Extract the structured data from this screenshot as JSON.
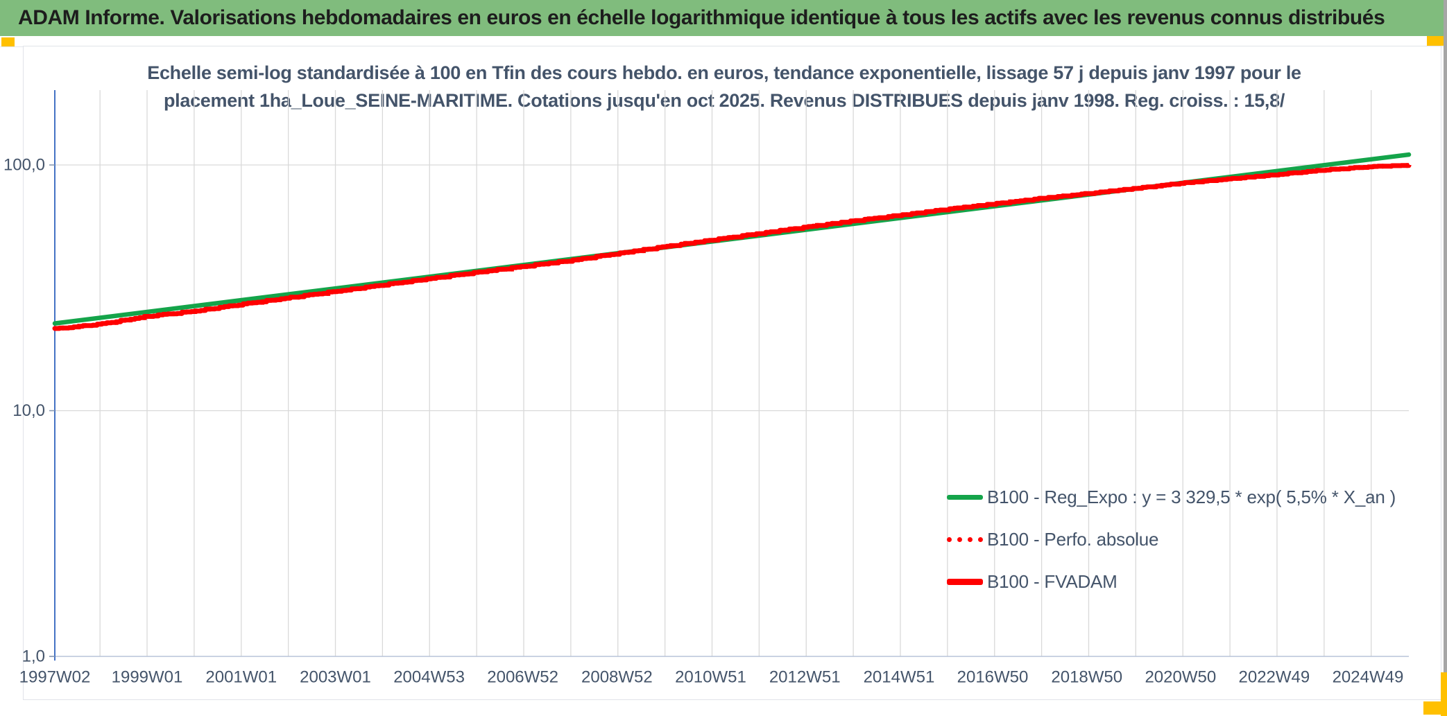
{
  "header": {
    "title": "ADAM Informe. Valorisations hebdomadaires en euros en échelle logarithmique identique à tous les actifs avec les revenus connus distribués",
    "bar_color": "#80bc7d",
    "accent_color": "#ffc000"
  },
  "chart": {
    "title_line1": "Echelle semi-log standardisée à 100 en Tfin des cours hebdo. en euros, tendance exponentielle, lissage 57 j depuis janv 1997 pour le",
    "title_line2": "placement 1ha_Loue_SEINE-MARITIME. Cotations jusqu'en oct 2025. Revenus DISTRIBUES depuis janv 1998. Reg. croiss. : 15,8/",
    "legend": [
      {
        "label": "B100 - Reg_Expo : y = 3 329,5 * exp( 5,5% *  X_an )",
        "color": "#14a44a",
        "style": "solid",
        "weight": 7
      },
      {
        "label": "B100 - Perfo. absolue",
        "color": "#ff0000",
        "style": "dotted",
        "weight": 7
      },
      {
        "label": "B100 - FVADAM",
        "color": "#ff0000",
        "style": "solid",
        "weight": 9
      }
    ]
  },
  "chart_data": {
    "type": "line",
    "title": "Echelle semi-log standardisée à 100 en Tfin des cours hebdo. en euros, tendance exponentielle, lissage 57 j depuis janv 1997 pour le placement 1ha_Loue_SEINE-MARITIME. Cotations jusqu'en oct 2025. Revenus DISTRIBUES depuis janv 1998. Reg. croiss. : 15,8/",
    "x_axis": {
      "range": [
        1997.04,
        2025.8
      ],
      "tick_labels": [
        "1997W02",
        "1999W01",
        "2001W01",
        "2003W01",
        "2004W53",
        "2006W52",
        "2008W52",
        "2010W51",
        "2012W51",
        "2014W51",
        "2016W50",
        "2018W50",
        "2020W50",
        "2022W49",
        "2024W49"
      ],
      "tick_years": [
        1997.04,
        1999.0,
        2001.0,
        2003.0,
        2004.99,
        2006.98,
        2008.98,
        2010.97,
        2012.97,
        2014.97,
        2016.96,
        2018.96,
        2020.95,
        2022.94,
        2024.93
      ],
      "gridlines": "yearly"
    },
    "y_axis": {
      "scale": "log",
      "ylim": [
        1,
        200
      ],
      "tick_labels": [
        "100,0",
        "10,0",
        "1,0"
      ],
      "tick_values": [
        100,
        10,
        1
      ]
    },
    "grid_color": "#d9d9d9",
    "axis_color": "#4472c4",
    "legend_position": "inside lower-right",
    "series": [
      {
        "name": "B100 - Reg_Expo : y = 3 329,5 * exp( 5,5% *  X_an )",
        "color": "#14a44a",
        "style": "solid-straight",
        "formula": "y = 3 329,5 * exp( 5,5% * X_an )",
        "annual_growth": "5,5%",
        "points": [
          [
            1997.04,
            22.65
          ],
          [
            2025.8,
            110.2
          ]
        ]
      },
      {
        "name": "B100 - Perfo. absolue",
        "color": "#ff0000",
        "style": "dotted",
        "coincides_with": "B100 - FVADAM"
      },
      {
        "name": "B100 - FVADAM",
        "color": "#ff0000",
        "style": "step",
        "points": [
          [
            1997.04,
            21.6
          ],
          [
            1998,
            22.6
          ],
          [
            1999,
            24.3
          ],
          [
            2000,
            25.5
          ],
          [
            2001,
            27.2
          ],
          [
            2002,
            28.9
          ],
          [
            2003,
            30.7
          ],
          [
            2004,
            32.6
          ],
          [
            2005,
            34.6
          ],
          [
            2006,
            36.7
          ],
          [
            2007,
            38.8
          ],
          [
            2008,
            41.0
          ],
          [
            2009,
            43.8
          ],
          [
            2010,
            46.7
          ],
          [
            2011,
            49.7
          ],
          [
            2012,
            52.8
          ],
          [
            2013,
            56.1
          ],
          [
            2014,
            59.4
          ],
          [
            2015,
            62.7
          ],
          [
            2016,
            66.3
          ],
          [
            2017,
            69.7
          ],
          [
            2018,
            73.4
          ],
          [
            2019,
            76.8
          ],
          [
            2020,
            80.6
          ],
          [
            2021,
            84.7
          ],
          [
            2022,
            88.1
          ],
          [
            2023,
            91.7
          ],
          [
            2024,
            95.7
          ],
          [
            2025,
            98.7
          ],
          [
            2025.8,
            100.0
          ]
        ]
      }
    ]
  }
}
